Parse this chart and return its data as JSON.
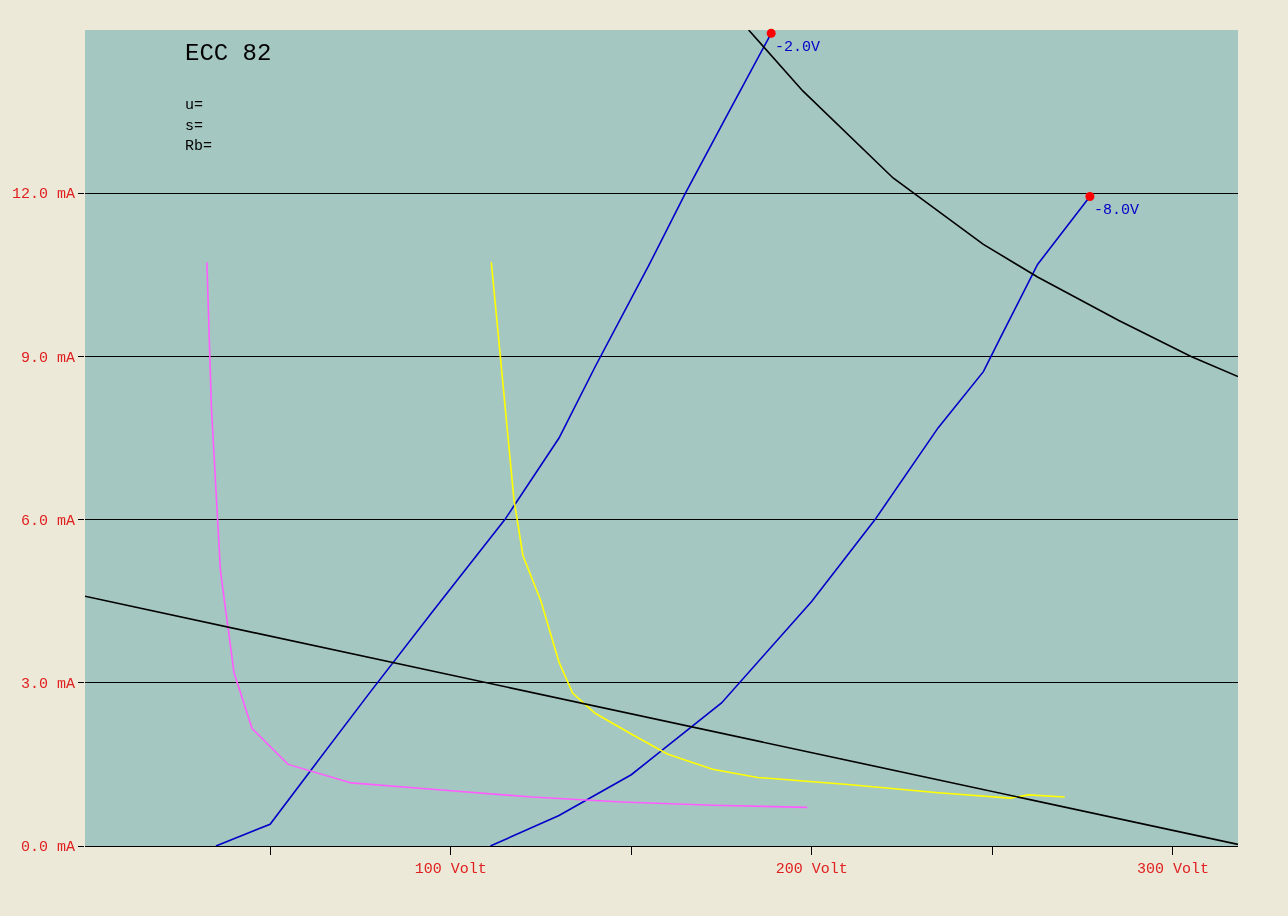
{
  "chart_data": {
    "type": "line",
    "title": "ECC 82",
    "annotations": [
      "u=",
      "s=",
      "Rb="
    ],
    "xlim": [
      -1.25,
      318
    ],
    "ylim": [
      0,
      15
    ],
    "xticks": [
      {
        "value": 50,
        "label": null
      },
      {
        "value": 100,
        "label": "100 Volt"
      },
      {
        "value": 150,
        "label": null
      },
      {
        "value": 200,
        "label": "200 Volt"
      },
      {
        "value": 250,
        "label": null
      },
      {
        "value": 300,
        "label": "300 Volt"
      }
    ],
    "yticks": [
      {
        "value": 0,
        "label": "0.0 mA"
      },
      {
        "value": 3,
        "label": "3.0 mA"
      },
      {
        "value": 6,
        "label": "6.0 mA"
      },
      {
        "value": 9,
        "label": "9.0 mA"
      },
      {
        "value": 12,
        "label": "12.0 mA"
      }
    ],
    "grid": "y",
    "series": [
      {
        "name": "-2.0V",
        "color": "#0000c8",
        "x": [
          35,
          50,
          62.5,
          77.5,
          95,
          115,
          130,
          140,
          155,
          165,
          176.25,
          188.75
        ],
        "values": [
          0,
          0.4,
          1.5,
          2.81,
          4.31,
          6.0,
          7.5,
          8.81,
          10.69,
          12.0,
          13.4,
          14.94
        ]
      },
      {
        "name": "-8.0V",
        "color": "#0000c8",
        "x": [
          111,
          130,
          150,
          175,
          200,
          217.5,
          235,
          247.5,
          252.5,
          262.5,
          277
        ],
        "values": [
          0,
          0.56,
          1.31,
          2.63,
          4.5,
          6.0,
          7.69,
          8.72,
          9.38,
          10.69,
          11.94
        ]
      },
      {
        "color": "#ff5cff",
        "x": [
          32.5,
          33.75,
          36.25,
          40,
          45,
          55,
          72.5,
          97.5,
          122.5,
          147.5,
          172.5,
          198.75
        ],
        "values": [
          10.73,
          8.06,
          5.06,
          3.19,
          2.16,
          1.5,
          1.16,
          1.03,
          0.9,
          0.81,
          0.75,
          0.71
        ]
      },
      {
        "color": "#ffff00",
        "x": [
          111.25,
          113.75,
          117.5,
          120,
          125,
          130,
          133.75,
          140,
          150,
          160,
          172.5,
          185,
          210,
          235,
          255,
          260,
          270
        ],
        "values": [
          10.73,
          9.0,
          6.38,
          5.34,
          4.5,
          3.38,
          2.81,
          2.44,
          2.06,
          1.69,
          1.41,
          1.26,
          1.13,
          0.98,
          0.88,
          0.94,
          0.9
        ]
      },
      {
        "color": "#000000",
        "x": [
          182.5,
          197.5,
          222.5,
          247.5,
          262.5,
          285,
          305,
          318
        ],
        "values": [
          15.0,
          13.88,
          12.28,
          11.06,
          10.46,
          9.66,
          9.0,
          8.63
        ]
      },
      {
        "color": "#000000",
        "x": [
          -1.25,
          318
        ],
        "values": [
          4.59,
          0.03
        ]
      },
      {
        "type": "scatter",
        "color": "#ff0000",
        "marker": "circle",
        "x": [
          188.75,
          277
        ],
        "values": [
          14.94,
          11.94
        ]
      }
    ]
  }
}
